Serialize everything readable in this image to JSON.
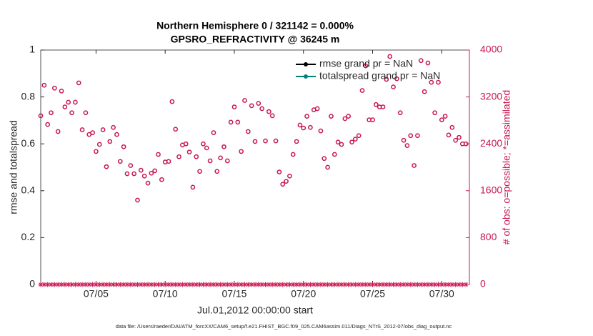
{
  "chart_data": {
    "type": "scatter",
    "title": "Northern Hemisphere 0 / 321142 = 0.000%",
    "subtitle": "GPSRO_REFRACTIVITY @ 36245 m",
    "x_label": "Jul.01,2012 00:00:00 start",
    "y_label": "rmse and totalspread",
    "y2_label": "# of obs: o=possible; *=assimilated",
    "footnote": "data file: /Users/raeder/DAI/ATM_forcXX/CAM6_setup/f.e21.FHIST_BGC.f09_025.CAM6assim.011/Diags_NTrS_2012-07/obs_diag_output.nc",
    "legend": [
      {
        "name": "rmse grand pr = NaN",
        "color": "#000000"
      },
      {
        "name": "totalspread grand pr = NaN",
        "color": "#00807f"
      }
    ],
    "xlim": [
      1,
      32
    ],
    "xticks": [
      {
        "value": 5,
        "label": "07/05"
      },
      {
        "value": 10,
        "label": "07/10"
      },
      {
        "value": 15,
        "label": "07/15"
      },
      {
        "value": 20,
        "label": "07/20"
      },
      {
        "value": 25,
        "label": "07/25"
      },
      {
        "value": 30,
        "label": "07/30"
      }
    ],
    "ylim": [
      0,
      1
    ],
    "yticks": [
      0,
      0.2,
      0.4,
      0.6,
      0.8,
      1
    ],
    "y2lim": [
      0,
      4000
    ],
    "y2ticks": [
      0,
      800,
      1600,
      2400,
      3200,
      4000
    ],
    "x": [
      1,
      1.25,
      1.5,
      1.75,
      2,
      2.25,
      2.5,
      2.75,
      3,
      3.25,
      3.5,
      3.75,
      4,
      4.25,
      4.5,
      4.75,
      5,
      5.25,
      5.5,
      5.75,
      6,
      6.25,
      6.5,
      6.75,
      7,
      7.25,
      7.5,
      7.75,
      8,
      8.25,
      8.5,
      8.75,
      9,
      9.25,
      9.5,
      9.75,
      10,
      10.25,
      10.5,
      10.75,
      11,
      11.25,
      11.5,
      11.75,
      12,
      12.25,
      12.5,
      12.75,
      13,
      13.25,
      13.5,
      13.75,
      14,
      14.25,
      14.5,
      14.75,
      15,
      15.25,
      15.5,
      15.75,
      16,
      16.25,
      16.5,
      16.75,
      17,
      17.25,
      17.5,
      17.75,
      18,
      18.25,
      18.5,
      18.75,
      19,
      19.25,
      19.5,
      19.75,
      20,
      20.25,
      20.5,
      20.75,
      21,
      21.25,
      21.5,
      21.75,
      22,
      22.25,
      22.5,
      22.75,
      23,
      23.25,
      23.5,
      23.75,
      24,
      24.25,
      24.5,
      24.75,
      25,
      25.25,
      25.5,
      25.75,
      26,
      26.25,
      26.5,
      26.75,
      27,
      27.25,
      27.5,
      27.75,
      28,
      28.25,
      28.5,
      28.75,
      29,
      29.25,
      29.5,
      29.75,
      30,
      30.25,
      30.5,
      30.75,
      31,
      31.25,
      31.5,
      31.75
    ],
    "series": [
      {
        "marker": "circle",
        "color": "#c8174f",
        "axis": "y2",
        "values": [
          2880,
          3400,
          2730,
          2930,
          3350,
          2610,
          3300,
          3030,
          3110,
          2930,
          3110,
          3440,
          2640,
          2930,
          2560,
          2590,
          2270,
          2390,
          2640,
          2010,
          2440,
          2680,
          2560,
          2100,
          2350,
          1890,
          2030,
          1890,
          1440,
          1950,
          1850,
          1730,
          1900,
          1940,
          2220,
          1790,
          2090,
          2100,
          3120,
          2650,
          2180,
          2380,
          2400,
          2260,
          1660,
          2180,
          1930,
          2400,
          2330,
          2110,
          2590,
          1930,
          2160,
          2350,
          2110,
          2770,
          3030,
          2770,
          2270,
          3140,
          2610,
          3050,
          2440,
          3090,
          3000,
          2450,
          2950,
          2880,
          2450,
          1920,
          1710,
          1760,
          1850,
          2220,
          2440,
          2720,
          2670,
          2870,
          2680,
          2980,
          3000,
          2620,
          2150,
          2000,
          2870,
          2220,
          2430,
          2390,
          2830,
          2870,
          2430,
          2480,
          2540,
          3310,
          3730,
          2810,
          2810,
          3070,
          3030,
          3030,
          3500,
          3890,
          3370,
          3510,
          2930,
          2460,
          2370,
          2540,
          2030,
          2540,
          3820,
          3290,
          3780,
          3450,
          2930,
          3450,
          2810,
          2870,
          2550,
          2680,
          2460,
          2510,
          2400,
          2400
        ]
      },
      {
        "marker": "asterisk",
        "color": "#c8174f",
        "axis": "y2",
        "values": [
          0,
          0,
          0,
          0,
          0,
          0,
          0,
          0,
          0,
          0,
          0,
          0,
          0,
          0,
          0,
          0,
          0,
          0,
          0,
          0,
          0,
          0,
          0,
          0,
          0,
          0,
          0,
          0,
          0,
          0,
          0,
          0,
          0,
          0,
          0,
          0,
          0,
          0,
          0,
          0,
          0,
          0,
          0,
          0,
          0,
          0,
          0,
          0,
          0,
          0,
          0,
          0,
          0,
          0,
          0,
          0,
          0,
          0,
          0,
          0,
          0,
          0,
          0,
          0,
          0,
          0,
          0,
          0,
          0,
          0,
          0,
          0,
          0,
          0,
          0,
          0,
          0,
          0,
          0,
          0,
          0,
          0,
          0,
          0,
          0,
          0,
          0,
          0,
          0,
          0,
          0,
          0,
          0,
          0,
          0,
          0,
          0,
          0,
          0,
          0,
          0,
          0,
          0,
          0,
          0,
          0,
          0,
          0,
          0,
          0,
          0,
          0,
          0,
          0,
          0,
          0,
          0,
          0,
          0,
          0,
          0,
          0,
          0,
          0
        ]
      }
    ]
  }
}
